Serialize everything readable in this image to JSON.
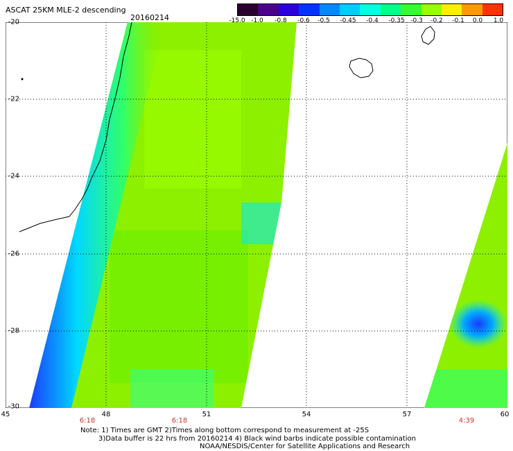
{
  "header": {
    "title": "ASCAT 25KM MLE-2 descending",
    "date": "20160214"
  },
  "colorbar": {
    "labels": [
      "-15.0",
      "-1.0",
      "-0.8",
      "-0.6",
      "-0.5",
      "-0.45",
      "-0.4",
      "-0.35",
      "-0.3",
      "-0.2",
      "-0.1",
      "0.0",
      "1.0"
    ],
    "colors": [
      "#2a0030",
      "#4b008c",
      "#2a00d8",
      "#0033ff",
      "#0088ff",
      "#00ccff",
      "#00ffe0",
      "#00ff88",
      "#33ff33",
      "#99ff00",
      "#ffee00",
      "#ff9900",
      "#ff3300"
    ]
  },
  "map": {
    "lon_labels": [
      "45",
      "48",
      "51",
      "54",
      "57",
      "60"
    ],
    "lat_labels": [
      "-20",
      "-22",
      "-24",
      "-26",
      "-28",
      "-30"
    ],
    "time_labels": [
      "6:18",
      "6:18",
      "4:39"
    ],
    "lon_range": [
      45,
      60
    ],
    "lat_range": [
      -30,
      -20
    ],
    "grid": true,
    "feature_colors": {
      "swath_main": "#8cf000",
      "swath_low": "#00e8ff",
      "swath_lowest": "#1a3cff"
    }
  },
  "notes": {
    "line1": "Note: 1) Times are GMT 2)Times along bottom correspond to measurement at -25S",
    "line2": "3)Data buffer is 22 hrs from 20160214 4) Black wind barbs indicate possible contamination",
    "line3": "NOAA/NESDIS/Center for Satellite Applications and Research"
  }
}
